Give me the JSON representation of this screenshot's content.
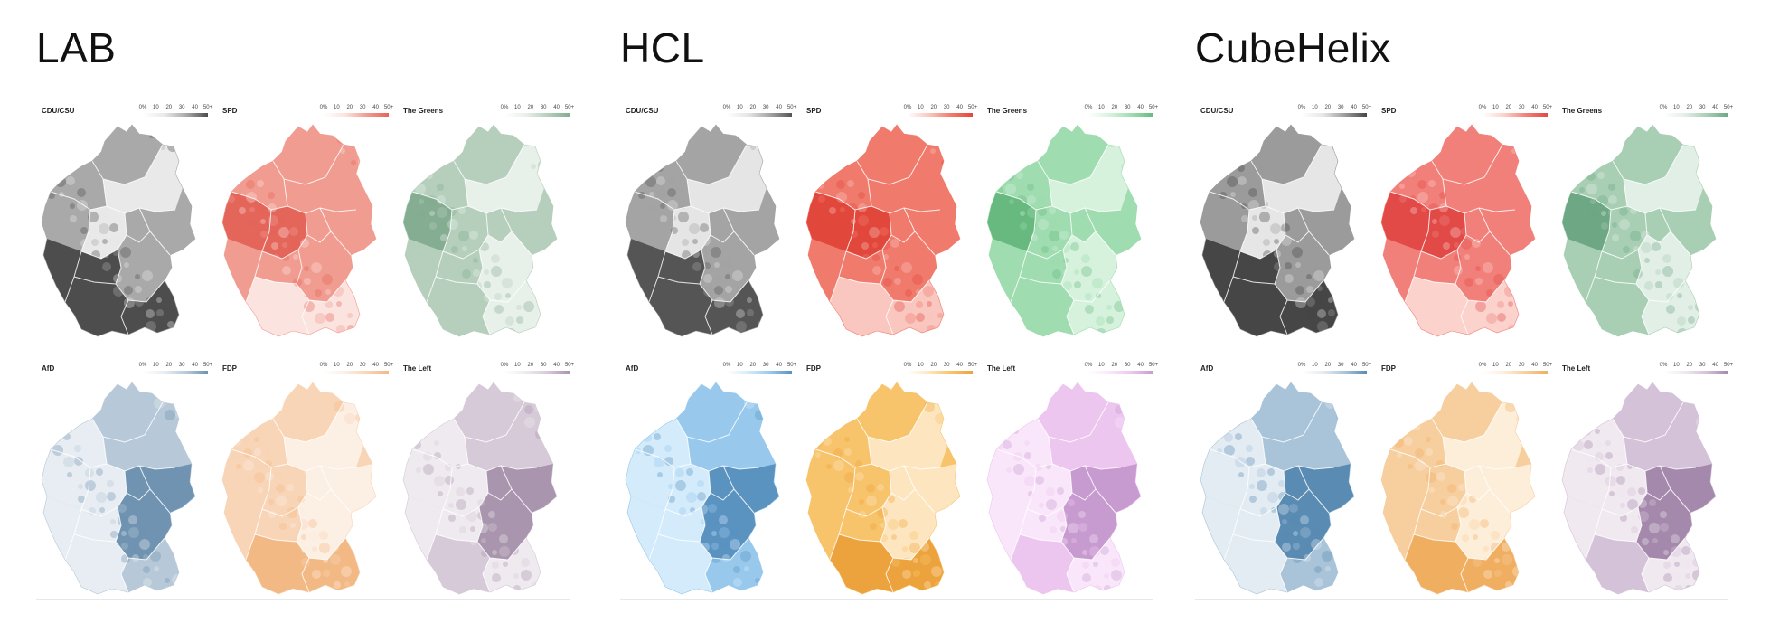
{
  "legend_ticks": [
    "0%",
    "10",
    "20",
    "30",
    "40",
    "50+"
  ],
  "panels": [
    {
      "title": "LAB",
      "maps": [
        {
          "party": "CDU/CSU",
          "colors": [
            "#e9e9e9",
            "#a9a9a9",
            "#4d4d4d"
          ]
        },
        {
          "party": "SPD",
          "colors": [
            "#fbe3df",
            "#f19c91",
            "#e4655a"
          ]
        },
        {
          "party": "The Greens",
          "colors": [
            "#e8f0ea",
            "#b6cfbc",
            "#84ad91"
          ]
        },
        {
          "party": "AfD",
          "colors": [
            "#e7edf2",
            "#b7c9d8",
            "#6f93b1"
          ]
        },
        {
          "party": "FDP",
          "colors": [
            "#fcefe3",
            "#f8d5b7",
            "#f3b985"
          ]
        },
        {
          "party": "The Left",
          "colors": [
            "#efeaef",
            "#d6cad8",
            "#a995ae"
          ]
        }
      ]
    },
    {
      "title": "HCL",
      "maps": [
        {
          "party": "CDU/CSU",
          "colors": [
            "#e5e5e5",
            "#a4a4a4",
            "#555555"
          ]
        },
        {
          "party": "SPD",
          "colors": [
            "#f9c7bf",
            "#f07b6d",
            "#e2473b"
          ]
        },
        {
          "party": "The Greens",
          "colors": [
            "#d6f2dd",
            "#9fdcb0",
            "#67b97f"
          ]
        },
        {
          "party": "AfD",
          "colors": [
            "#d4ebfb",
            "#98c9ed",
            "#5a93c0"
          ]
        },
        {
          "party": "FDP",
          "colors": [
            "#fde6bf",
            "#f7c46c",
            "#eda33d"
          ]
        },
        {
          "party": "The Left",
          "colors": [
            "#fae6fb",
            "#edc6ef",
            "#c79bcf"
          ]
        }
      ]
    },
    {
      "title": "CubeHelix",
      "maps": [
        {
          "party": "CDU/CSU",
          "colors": [
            "#e6e6e6",
            "#9b9b9b",
            "#464646"
          ]
        },
        {
          "party": "SPD",
          "colors": [
            "#fbd2cc",
            "#f2807a",
            "#e14a47"
          ]
        },
        {
          "party": "The Greens",
          "colors": [
            "#e2efe6",
            "#a8cfb4",
            "#6da783"
          ]
        },
        {
          "party": "AfD",
          "colors": [
            "#e3ecf3",
            "#a9c4d9",
            "#5a8bb2"
          ]
        },
        {
          "party": "FDP",
          "colors": [
            "#fdeed9",
            "#f7ce9e",
            "#f0ae61"
          ]
        },
        {
          "party": "The Left",
          "colors": [
            "#f0e9f0",
            "#d4c2d8",
            "#a589ac"
          ]
        }
      ]
    }
  ]
}
